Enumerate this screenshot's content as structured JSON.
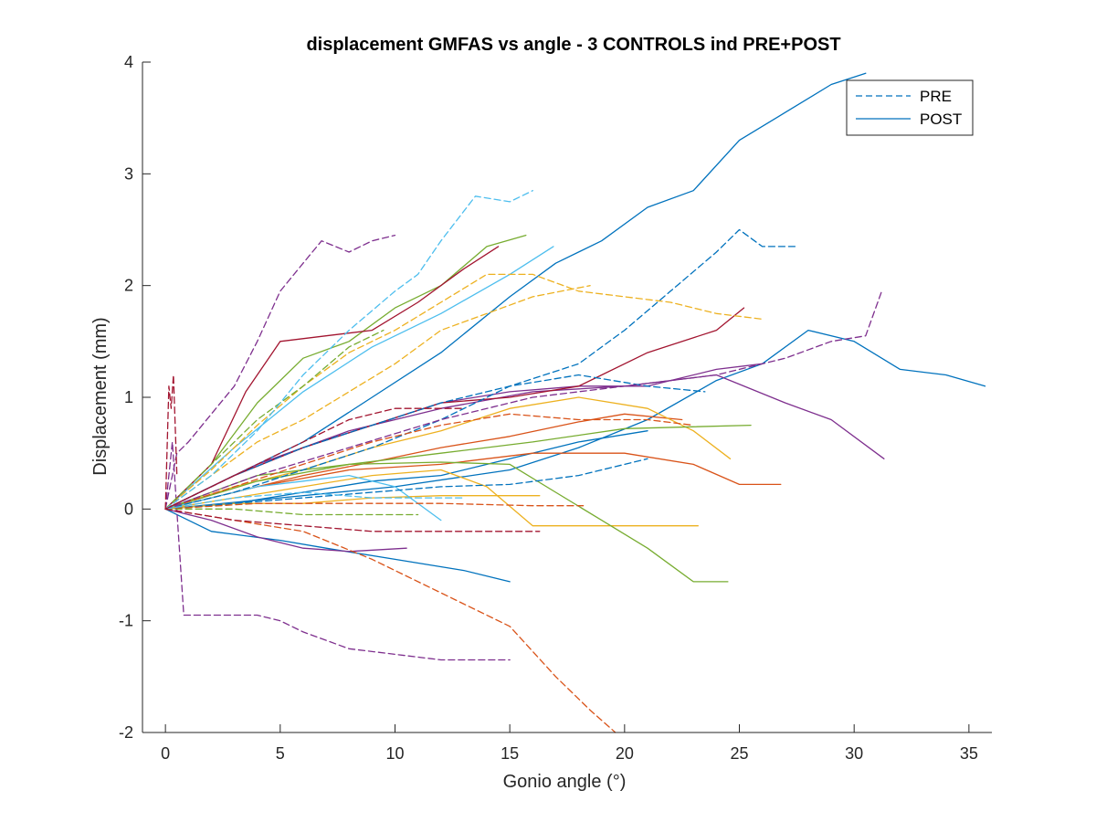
{
  "chart_data": {
    "type": "line",
    "title": "displacement GMFAS vs angle - 3 CONTROLS ind PRE+POST",
    "xlabel": "Gonio angle (°)",
    "ylabel": "Displacement (mm)",
    "xlim": [
      -1,
      36
    ],
    "ylim": [
      -2,
      4
    ],
    "xticks": [
      0,
      5,
      10,
      15,
      20,
      25,
      30,
      35
    ],
    "yticks": [
      -2,
      -1,
      0,
      1,
      2,
      3,
      4
    ],
    "grid": false,
    "legend": {
      "placement": "top-right",
      "entries": [
        {
          "label": "PRE",
          "style": "dashed",
          "color": "#0072BD"
        },
        {
          "label": "POST",
          "style": "solid",
          "color": "#0072BD"
        }
      ]
    },
    "series": [
      {
        "style": "solid",
        "color": "#0072BD",
        "x": [
          0,
          3,
          6,
          9,
          12,
          15,
          17,
          19,
          21,
          23,
          25,
          27,
          29,
          30.5
        ],
        "y": [
          0,
          0.3,
          0.6,
          1.0,
          1.4,
          1.9,
          2.2,
          2.4,
          2.7,
          2.85,
          3.3,
          3.55,
          3.8,
          3.9
        ]
      },
      {
        "style": "solid",
        "color": "#0072BD",
        "x": [
          0,
          5,
          10,
          15,
          18,
          21,
          24,
          26,
          28,
          30,
          32,
          34,
          35.7
        ],
        "y": [
          0,
          0.1,
          0.2,
          0.35,
          0.55,
          0.8,
          1.15,
          1.3,
          1.6,
          1.5,
          1.25,
          1.2,
          1.1
        ]
      },
      {
        "style": "solid",
        "color": "#0072BD",
        "x": [
          0,
          2,
          5,
          7,
          10,
          13,
          15
        ],
        "y": [
          0,
          -0.2,
          -0.28,
          -0.35,
          -0.45,
          -0.55,
          -0.65
        ]
      },
      {
        "style": "solid",
        "color": "#0072BD",
        "x": [
          0,
          3,
          6,
          9,
          12,
          15,
          18,
          21
        ],
        "y": [
          0,
          0.05,
          0.15,
          0.25,
          0.3,
          0.45,
          0.6,
          0.7
        ]
      },
      {
        "style": "solid",
        "color": "#D95319",
        "x": [
          0,
          4,
          8,
          12,
          16,
          20,
          23,
          25,
          26.8
        ],
        "y": [
          0,
          0.2,
          0.35,
          0.4,
          0.5,
          0.5,
          0.4,
          0.22,
          0.22
        ]
      },
      {
        "style": "solid",
        "color": "#D95319",
        "x": [
          0,
          3,
          6,
          9,
          12,
          15,
          18,
          20,
          22.5
        ],
        "y": [
          0,
          0.15,
          0.3,
          0.42,
          0.55,
          0.65,
          0.78,
          0.85,
          0.8
        ]
      },
      {
        "style": "solid",
        "color": "#EDB120",
        "x": [
          0,
          3,
          6,
          9,
          12,
          14,
          16,
          20,
          23.2
        ],
        "y": [
          0,
          0.1,
          0.2,
          0.3,
          0.35,
          0.2,
          -0.15,
          -0.15,
          -0.15
        ]
      },
      {
        "style": "solid",
        "color": "#EDB120",
        "x": [
          0,
          3,
          6,
          9,
          12,
          15,
          18,
          21,
          23,
          24.6
        ],
        "y": [
          0,
          0.2,
          0.35,
          0.55,
          0.7,
          0.9,
          1.0,
          0.9,
          0.7,
          0.45
        ]
      },
      {
        "style": "solid",
        "color": "#EDB120",
        "x": [
          0,
          3,
          6,
          9,
          12,
          16.3
        ],
        "y": [
          0,
          0.05,
          0.05,
          0.1,
          0.12,
          0.12
        ]
      },
      {
        "style": "solid",
        "color": "#7E2F8E",
        "x": [
          0,
          4,
          8,
          12,
          16,
          20,
          24,
          27,
          29,
          31.3
        ],
        "y": [
          0,
          0.4,
          0.7,
          0.9,
          1.05,
          1.1,
          1.2,
          0.95,
          0.8,
          0.45
        ]
      },
      {
        "style": "solid",
        "color": "#7E2F8E",
        "x": [
          0,
          3,
          6,
          9,
          12,
          15,
          18,
          21,
          24,
          26
        ],
        "y": [
          0,
          0.3,
          0.55,
          0.75,
          0.95,
          1.05,
          1.1,
          1.1,
          1.25,
          1.3
        ]
      },
      {
        "style": "solid",
        "color": "#7E2F8E",
        "x": [
          0,
          2,
          4,
          6,
          8,
          10.5
        ],
        "y": [
          0,
          -0.1,
          -0.25,
          -0.35,
          -0.38,
          -0.35
        ]
      },
      {
        "style": "solid",
        "color": "#77AC30",
        "x": [
          0,
          2,
          4,
          6,
          8,
          10,
          12,
          14,
          15.7
        ],
        "y": [
          0,
          0.4,
          0.95,
          1.35,
          1.5,
          1.8,
          2.0,
          2.35,
          2.45
        ]
      },
      {
        "style": "solid",
        "color": "#77AC30",
        "x": [
          0,
          4,
          8,
          12,
          15,
          17,
          19,
          21,
          23,
          24.5
        ],
        "y": [
          0,
          0.3,
          0.4,
          0.42,
          0.4,
          0.15,
          -0.1,
          -0.35,
          -0.65,
          -0.65
        ]
      },
      {
        "style": "solid",
        "color": "#77AC30",
        "x": [
          0,
          4,
          8,
          12,
          16,
          20,
          25.5
        ],
        "y": [
          0,
          0.25,
          0.4,
          0.5,
          0.6,
          0.72,
          0.75
        ]
      },
      {
        "style": "solid",
        "color": "#4DBEEE",
        "x": [
          0,
          3,
          6,
          9,
          12,
          15,
          16.9
        ],
        "y": [
          0,
          0.55,
          1.05,
          1.45,
          1.75,
          2.1,
          2.35
        ]
      },
      {
        "style": "solid",
        "color": "#4DBEEE",
        "x": [
          0,
          2,
          4,
          6,
          8,
          10,
          12
        ],
        "y": [
          0,
          0.1,
          0.2,
          0.25,
          0.3,
          0.2,
          -0.1
        ]
      },
      {
        "style": "solid",
        "color": "#A2142F",
        "x": [
          0,
          2,
          3.5,
          5,
          7,
          9,
          11,
          13,
          14.5
        ],
        "y": [
          0,
          0.4,
          1.05,
          1.5,
          1.55,
          1.6,
          1.85,
          2.15,
          2.35
        ]
      },
      {
        "style": "solid",
        "color": "#A2142F",
        "x": [
          0,
          3,
          6,
          9,
          12,
          15,
          18,
          21,
          24,
          25.2
        ],
        "y": [
          0,
          0.3,
          0.55,
          0.75,
          0.95,
          1.0,
          1.1,
          1.4,
          1.6,
          1.8
        ]
      },
      {
        "style": "dashed",
        "color": "#0072BD",
        "x": [
          0,
          3,
          6,
          9,
          12,
          15,
          18,
          20,
          22,
          24,
          25,
          26,
          27.5
        ],
        "y": [
          0,
          0.3,
          0.55,
          0.75,
          0.95,
          1.1,
          1.3,
          1.6,
          1.95,
          2.3,
          2.5,
          2.35,
          2.35
        ]
      },
      {
        "style": "dashed",
        "color": "#0072BD",
        "x": [
          0,
          3,
          6,
          9,
          12,
          15,
          18,
          21,
          23.5
        ],
        "y": [
          0,
          0.15,
          0.35,
          0.55,
          0.8,
          1.1,
          1.2,
          1.1,
          1.05
        ]
      },
      {
        "style": "dashed",
        "color": "#0072BD",
        "x": [
          0,
          3,
          6,
          9,
          12,
          15,
          18,
          21
        ],
        "y": [
          0,
          0.05,
          0.1,
          0.15,
          0.2,
          0.22,
          0.3,
          0.45
        ]
      },
      {
        "style": "dashed",
        "color": "#D95319",
        "x": [
          0,
          3,
          6,
          9,
          12,
          15,
          17,
          18.5,
          19.6
        ],
        "y": [
          0,
          -0.1,
          -0.2,
          -0.45,
          -0.75,
          -1.05,
          -1.5,
          -1.8,
          -2.0
        ]
      },
      {
        "style": "dashed",
        "color": "#D95319",
        "x": [
          0,
          4,
          8,
          12,
          16,
          18.2
        ],
        "y": [
          0,
          0.05,
          0.05,
          0.05,
          0.03,
          0.03
        ]
      },
      {
        "style": "dashed",
        "color": "#D95319",
        "x": [
          0,
          3,
          6,
          9,
          12,
          15,
          18,
          21,
          23
        ],
        "y": [
          0,
          0.2,
          0.4,
          0.6,
          0.75,
          0.85,
          0.8,
          0.8,
          0.75
        ]
      },
      {
        "style": "dashed",
        "color": "#EDB120",
        "x": [
          0,
          2,
          4,
          6,
          8,
          10,
          12,
          14,
          16,
          18,
          20,
          22,
          24,
          26
        ],
        "y": [
          0,
          0.35,
          0.75,
          1.1,
          1.4,
          1.6,
          1.85,
          2.1,
          2.1,
          1.95,
          1.9,
          1.85,
          1.75,
          1.7
        ]
      },
      {
        "style": "dashed",
        "color": "#EDB120",
        "x": [
          0,
          2,
          4,
          6,
          8,
          10,
          12,
          14,
          16,
          18.5
        ],
        "y": [
          0,
          0.3,
          0.6,
          0.8,
          1.05,
          1.3,
          1.6,
          1.75,
          1.9,
          2.0
        ]
      },
      {
        "style": "dashed",
        "color": "#7E2F8E",
        "x": [
          0,
          0.5,
          1,
          2,
          3,
          4,
          5,
          6,
          6.8,
          8,
          9,
          10
        ],
        "y": [
          0,
          0.5,
          0.6,
          0.85,
          1.1,
          1.5,
          1.95,
          2.2,
          2.4,
          2.3,
          2.4,
          2.45
        ]
      },
      {
        "style": "dashed",
        "color": "#7E2F8E",
        "x": [
          0,
          0.3,
          0.8,
          2,
          4,
          5,
          6,
          8,
          10,
          12,
          13,
          15
        ],
        "y": [
          0,
          0.6,
          -0.95,
          -0.95,
          -0.95,
          -1.0,
          -1.1,
          -1.25,
          -1.3,
          -1.35,
          -1.35,
          -1.35
        ]
      },
      {
        "style": "dashed",
        "color": "#7E2F8E",
        "x": [
          0,
          4,
          8,
          12,
          16,
          20,
          24,
          27,
          29,
          30.5,
          31.2
        ],
        "y": [
          0,
          0.3,
          0.55,
          0.8,
          1.0,
          1.1,
          1.2,
          1.35,
          1.5,
          1.55,
          1.95
        ]
      },
      {
        "style": "dashed",
        "color": "#77AC30",
        "x": [
          0,
          2,
          4,
          6,
          8,
          9.5
        ],
        "y": [
          0,
          0.4,
          0.8,
          1.1,
          1.45,
          1.6
        ]
      },
      {
        "style": "dashed",
        "color": "#77AC30",
        "x": [
          0,
          3,
          6,
          9,
          11
        ],
        "y": [
          0,
          0.0,
          -0.05,
          -0.05,
          -0.05
        ]
      },
      {
        "style": "dashed",
        "color": "#4DBEEE",
        "x": [
          0,
          2,
          4,
          6,
          8,
          10,
          11,
          12,
          13.5,
          15,
          16
        ],
        "y": [
          0,
          0.3,
          0.7,
          1.2,
          1.6,
          1.95,
          2.1,
          2.4,
          2.8,
          2.75,
          2.85
        ]
      },
      {
        "style": "dashed",
        "color": "#4DBEEE",
        "x": [
          0,
          3,
          6,
          9,
          13
        ],
        "y": [
          0,
          0.1,
          0.15,
          0.1,
          0.1
        ]
      },
      {
        "style": "dashed",
        "color": "#A2142F",
        "x": [
          0,
          0.15,
          0.25,
          0.35,
          0.5
        ],
        "y": [
          0,
          1.1,
          0.9,
          1.2,
          0.3
        ]
      },
      {
        "style": "dashed",
        "color": "#A2142F",
        "x": [
          0,
          3,
          6,
          9,
          12,
          16.3
        ],
        "y": [
          0,
          -0.1,
          -0.15,
          -0.2,
          -0.2,
          -0.2
        ]
      },
      {
        "style": "dashed",
        "color": "#A2142F",
        "x": [
          0,
          2,
          4,
          6,
          8,
          10,
          13
        ],
        "y": [
          0,
          0.2,
          0.4,
          0.6,
          0.8,
          0.9,
          0.9
        ]
      }
    ]
  }
}
